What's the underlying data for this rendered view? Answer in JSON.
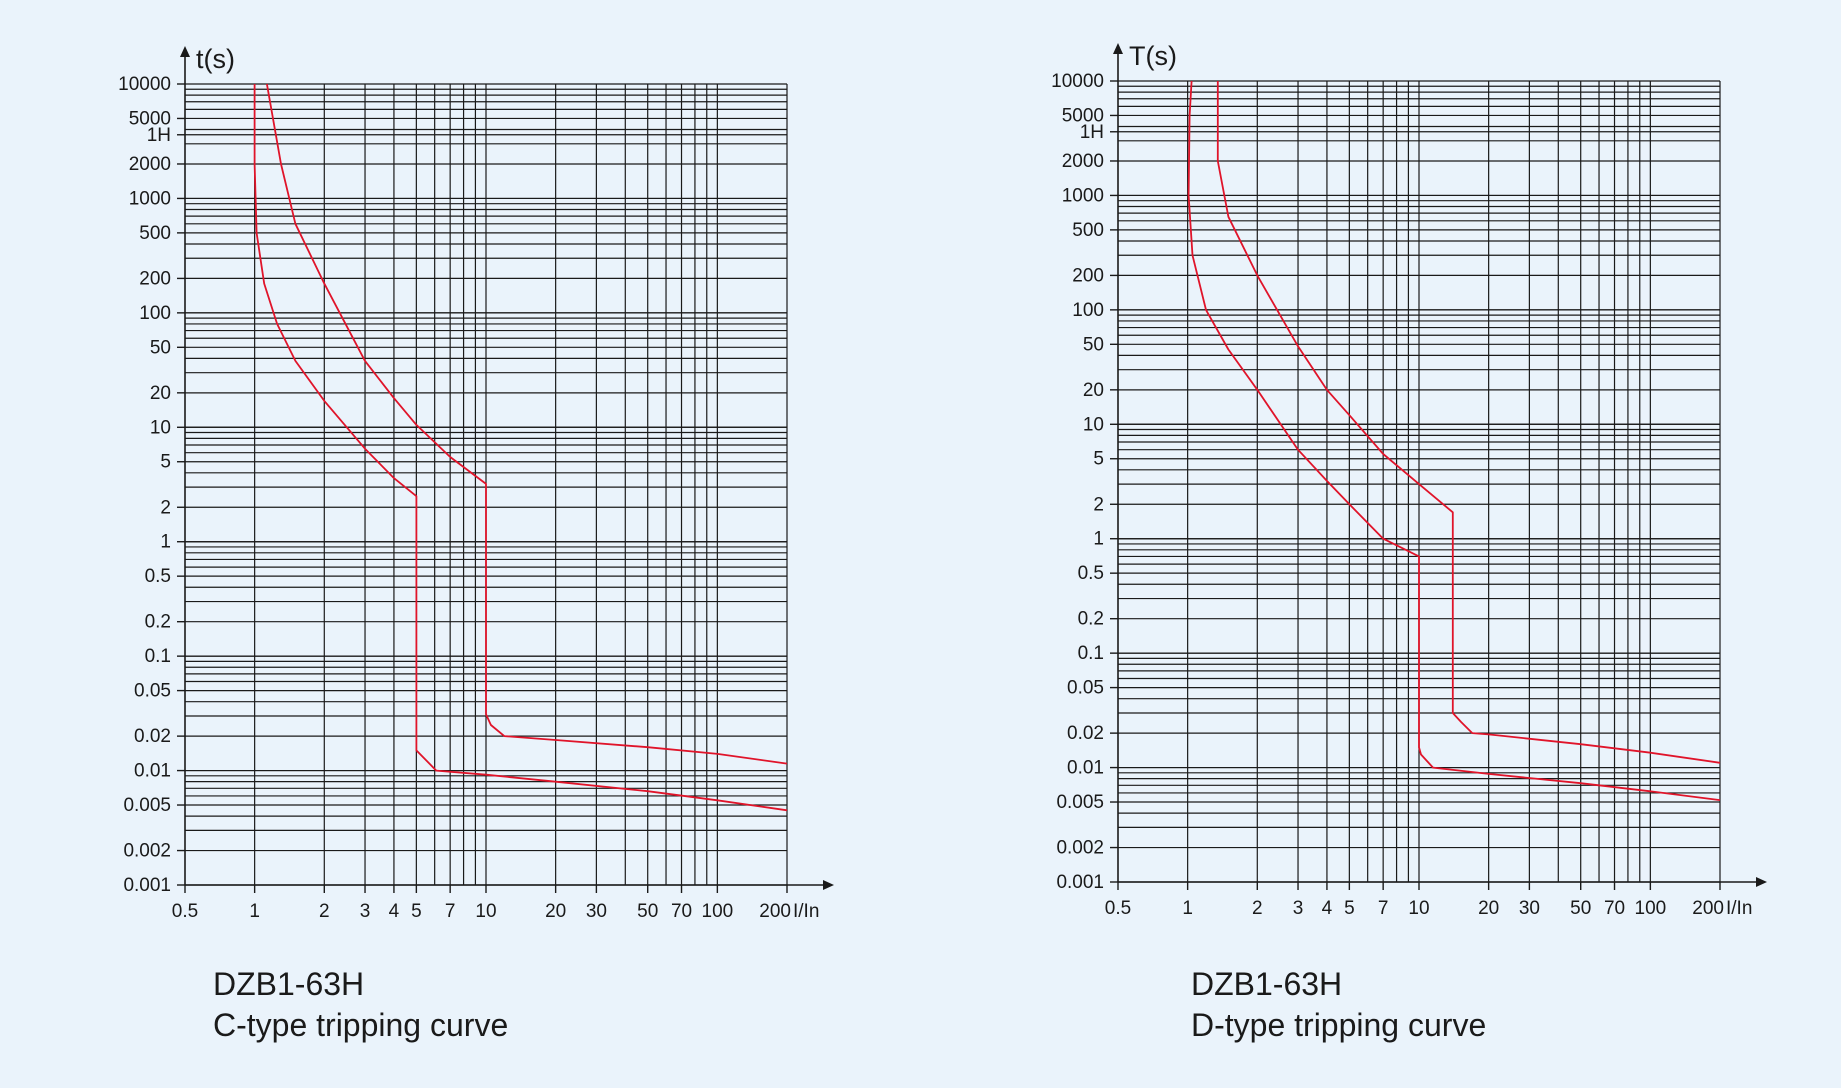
{
  "chart_data": [
    {
      "type": "line",
      "title": "DZB1-63H",
      "subtitle": "C-type tripping curve",
      "xlabel": "I/In",
      "ylabel": "t(s)",
      "xscale": "log",
      "yscale": "log",
      "xlim": [
        0.5,
        200
      ],
      "ylim": [
        0.001,
        10000
      ],
      "grid": true,
      "x_ticks": [
        {
          "v": 0.5,
          "label": "0.5"
        },
        {
          "v": 1,
          "label": "1"
        },
        {
          "v": 2,
          "label": "2"
        },
        {
          "v": 3,
          "label": "3"
        },
        {
          "v": 4,
          "label": "4"
        },
        {
          "v": 5,
          "label": "5"
        },
        {
          "v": 7,
          "label": "7"
        },
        {
          "v": 10,
          "label": "10"
        },
        {
          "v": 20,
          "label": "20"
        },
        {
          "v": 30,
          "label": "30"
        },
        {
          "v": 50,
          "label": "50"
        },
        {
          "v": 70,
          "label": "70"
        },
        {
          "v": 100,
          "label": "100"
        },
        {
          "v": 200,
          "label": "200"
        }
      ],
      "y_ticks": [
        {
          "v": 10000,
          "label": "10000"
        },
        {
          "v": 5000,
          "label": "5000"
        },
        {
          "v": 3600,
          "label": "1H"
        },
        {
          "v": 2000,
          "label": "2000"
        },
        {
          "v": 1000,
          "label": "1000"
        },
        {
          "v": 500,
          "label": "500"
        },
        {
          "v": 200,
          "label": "200"
        },
        {
          "v": 100,
          "label": "100"
        },
        {
          "v": 50,
          "label": "50"
        },
        {
          "v": 20,
          "label": "20"
        },
        {
          "v": 10,
          "label": "10"
        },
        {
          "v": 5,
          "label": "5"
        },
        {
          "v": 2,
          "label": "2"
        },
        {
          "v": 1,
          "label": "1"
        },
        {
          "v": 0.5,
          "label": "0.5"
        },
        {
          "v": 0.2,
          "label": "0.2"
        },
        {
          "v": 0.1,
          "label": "0.1"
        },
        {
          "v": 0.05,
          "label": "0.05"
        },
        {
          "v": 0.02,
          "label": "0.02"
        },
        {
          "v": 0.01,
          "label": "0.01"
        },
        {
          "v": 0.005,
          "label": "0.005"
        },
        {
          "v": 0.002,
          "label": "0.002"
        },
        {
          "v": 0.001,
          "label": "0.001"
        }
      ],
      "series": [
        {
          "x": [
            1.0,
            1.0,
            1.02,
            1.1,
            1.25,
            1.5,
            2.0,
            3.0,
            4.0,
            5.0,
            5.0,
            6.1,
            10.0,
            20.0,
            50.0,
            100.0,
            200.0
          ],
          "y": [
            10000,
            2000,
            500,
            180,
            80,
            38,
            17,
            6.5,
            3.6,
            2.5,
            0.015,
            0.01,
            0.0092,
            0.008,
            0.0066,
            0.0055,
            0.0045
          ]
        },
        {
          "x": [
            1.13,
            1.3,
            1.5,
            2.0,
            3.0,
            4.0,
            5.0,
            7.0,
            10.0,
            10.0,
            10.5,
            12.0,
            20.0,
            50.0,
            100.0,
            200.0
          ],
          "y": [
            10000,
            2000,
            600,
            180,
            38,
            18,
            10.5,
            5.5,
            3.2,
            0.031,
            0.025,
            0.02,
            0.0185,
            0.016,
            0.014,
            0.0115
          ]
        }
      ]
    },
    {
      "type": "line",
      "title": "DZB1-63H",
      "subtitle": "D-type tripping curve",
      "xlabel": "I/In",
      "ylabel": "T(s)",
      "xscale": "log",
      "yscale": "log",
      "xlim": [
        0.5,
        200
      ],
      "ylim": [
        0.001,
        10000
      ],
      "grid": true,
      "x_ticks": [
        {
          "v": 0.5,
          "label": "0.5"
        },
        {
          "v": 1,
          "label": "1"
        },
        {
          "v": 2,
          "label": "2"
        },
        {
          "v": 3,
          "label": "3"
        },
        {
          "v": 4,
          "label": "4"
        },
        {
          "v": 5,
          "label": "5"
        },
        {
          "v": 7,
          "label": "7"
        },
        {
          "v": 10,
          "label": "10"
        },
        {
          "v": 20,
          "label": "20"
        },
        {
          "v": 30,
          "label": "30"
        },
        {
          "v": 50,
          "label": "50"
        },
        {
          "v": 70,
          "label": "70"
        },
        {
          "v": 100,
          "label": "100"
        },
        {
          "v": 200,
          "label": "200"
        }
      ],
      "y_ticks": [
        {
          "v": 10000,
          "label": "10000"
        },
        {
          "v": 5000,
          "label": "5000"
        },
        {
          "v": 3600,
          "label": "1H"
        },
        {
          "v": 2000,
          "label": "2000"
        },
        {
          "v": 1000,
          "label": "1000"
        },
        {
          "v": 500,
          "label": "500"
        },
        {
          "v": 200,
          "label": "200"
        },
        {
          "v": 100,
          "label": "100"
        },
        {
          "v": 50,
          "label": "50"
        },
        {
          "v": 20,
          "label": "20"
        },
        {
          "v": 10,
          "label": "10"
        },
        {
          "v": 5,
          "label": "5"
        },
        {
          "v": 2,
          "label": "2"
        },
        {
          "v": 1,
          "label": "1"
        },
        {
          "v": 0.5,
          "label": "0.5"
        },
        {
          "v": 0.2,
          "label": "0.2"
        },
        {
          "v": 0.1,
          "label": "0.1"
        },
        {
          "v": 0.05,
          "label": "0.05"
        },
        {
          "v": 0.02,
          "label": "0.02"
        },
        {
          "v": 0.01,
          "label": "0.01"
        },
        {
          "v": 0.005,
          "label": "0.005"
        },
        {
          "v": 0.002,
          "label": "0.002"
        },
        {
          "v": 0.001,
          "label": "0.001"
        }
      ],
      "series": [
        {
          "x": [
            1.04,
            1.02,
            1.01,
            1.05,
            1.2,
            1.5,
            2.0,
            3.0,
            4.0,
            5.0,
            7.0,
            10.0,
            10.0,
            10.2,
            11.5,
            20.0,
            50.0,
            100.0,
            200.0
          ],
          "y": [
            10000,
            5000,
            1000,
            300,
            100,
            45,
            20,
            6,
            3.2,
            2.0,
            1.0,
            0.7,
            0.015,
            0.013,
            0.01,
            0.0088,
            0.0073,
            0.0062,
            0.0052
          ]
        },
        {
          "x": [
            1.35,
            1.35,
            1.5,
            2.0,
            3.0,
            4.0,
            5.0,
            7.0,
            10.0,
            14.0,
            14.0,
            15.2,
            17.0,
            20.0,
            50.0,
            100.0,
            200.0
          ],
          "y": [
            10000,
            2000,
            650,
            200,
            48,
            20,
            12,
            5.5,
            3.0,
            1.7,
            0.03,
            0.025,
            0.02,
            0.0195,
            0.016,
            0.0135,
            0.011
          ]
        }
      ]
    }
  ],
  "captions": [
    {
      "line1": "DZB1-63H",
      "line2": "C-type tripping curve"
    },
    {
      "line1": "DZB1-63H",
      "line2": "D-type tripping curve"
    }
  ],
  "colors": {
    "grid": "#1a1a1a",
    "curve": "#e0142a",
    "background": "#eaf3fb",
    "text": "#1a1a1a"
  }
}
